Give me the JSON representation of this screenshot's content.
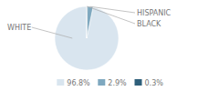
{
  "chart_data": {
    "type": "pie",
    "categories": [
      "WHITE",
      "HISPANIC",
      "BLACK"
    ],
    "values": [
      96.8,
      2.9,
      0.3
    ],
    "value_labels": [
      "96.8%",
      "2.9%",
      "0.3%"
    ],
    "colors": [
      "#d9e5ef",
      "#7ea8bf",
      "#2e5f7a"
    ],
    "legend": "bottom"
  }
}
